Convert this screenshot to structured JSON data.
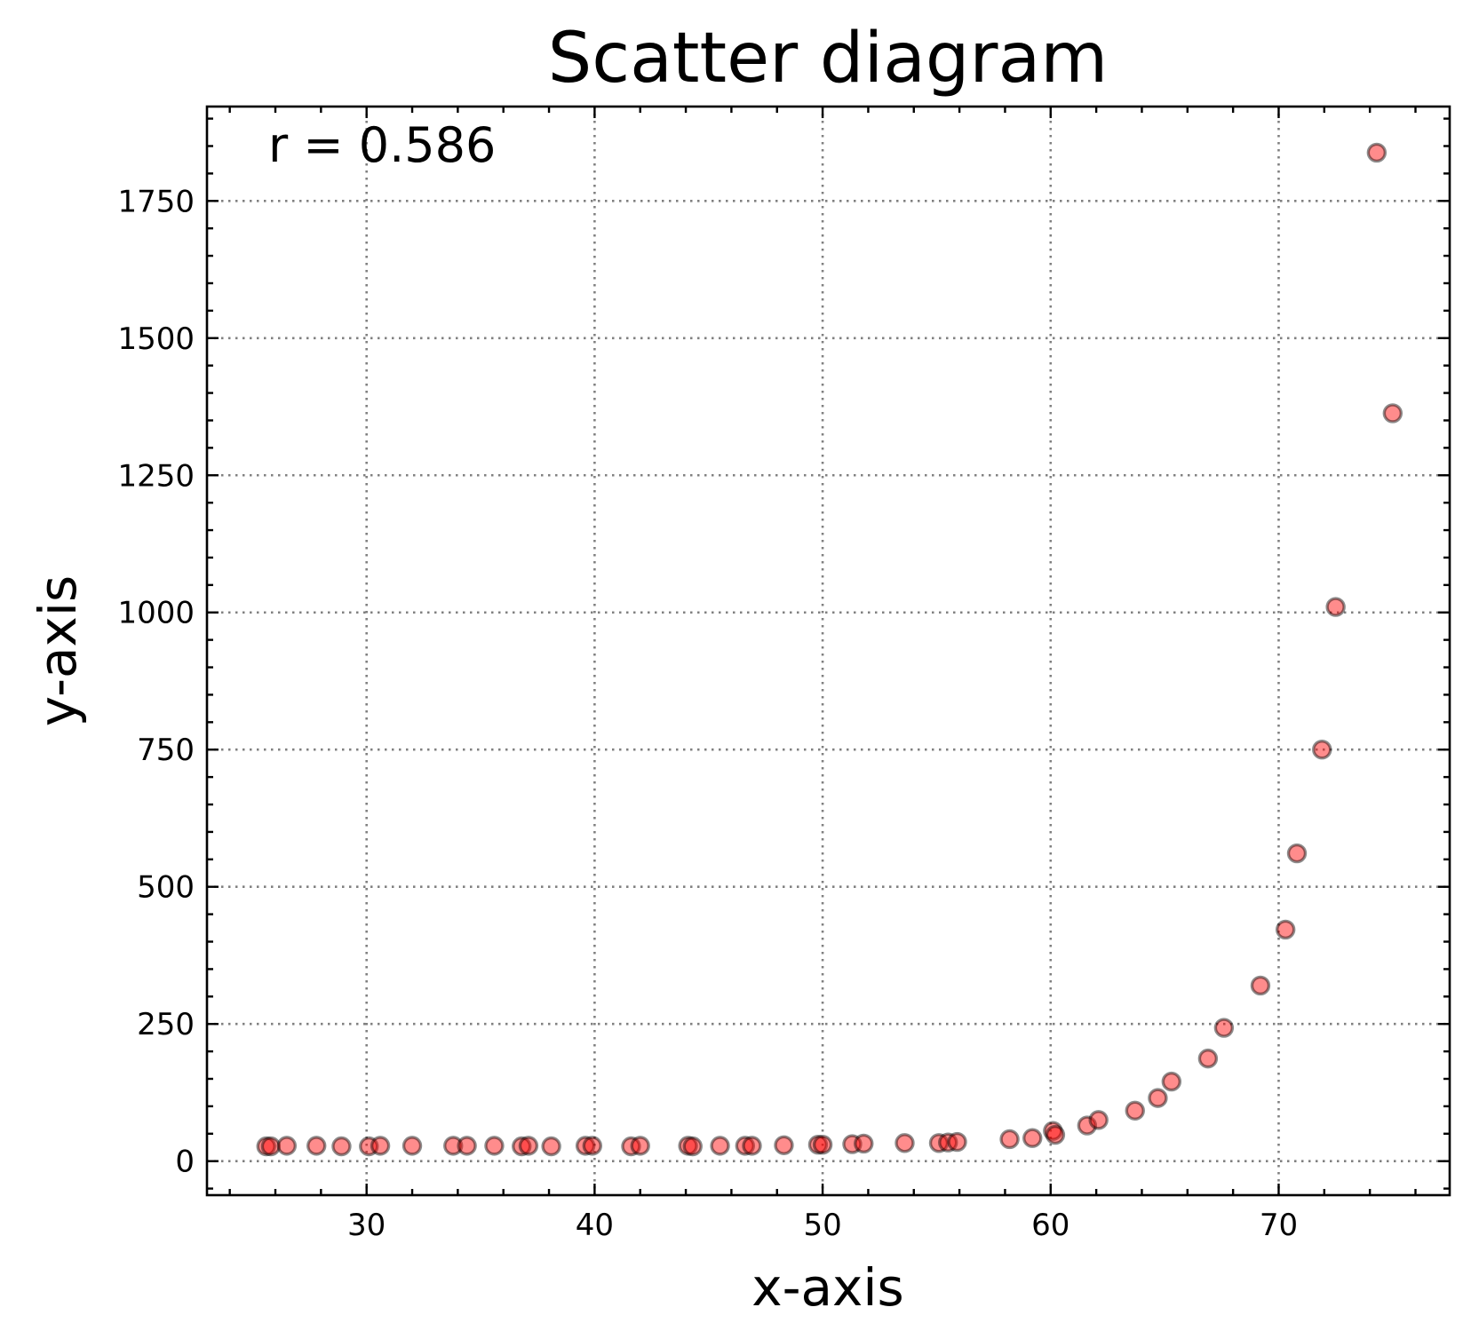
{
  "chart_data": {
    "type": "scatter",
    "title": "Scatter diagram",
    "xlabel": "x-axis",
    "ylabel": "y-axis",
    "annotation": "r = 0.586",
    "xlim": [
      23,
      77.5
    ],
    "ylim": [
      -62,
      1922
    ],
    "x_ticks": [
      30,
      40,
      50,
      60,
      70
    ],
    "y_ticks": [
      0,
      250,
      500,
      750,
      1000,
      1250,
      1500,
      1750
    ],
    "grid": true,
    "point_color": "#ff0000",
    "edge_color": "#000000",
    "series": [
      {
        "x": [
          25.6,
          25.8,
          26.5,
          27.8,
          28.9,
          30.1,
          30.6,
          32.0,
          33.8,
          34.4,
          35.6,
          36.8,
          37.1,
          38.1,
          39.6,
          39.9,
          41.6,
          42.0,
          44.1,
          44.3,
          45.5,
          46.6,
          46.9,
          48.3,
          49.8,
          50.0,
          51.3,
          51.8,
          53.6,
          55.1,
          55.5,
          55.9,
          58.2,
          59.2,
          60.1,
          60.2,
          61.6,
          62.1,
          63.7,
          64.7,
          65.3,
          66.9,
          67.6,
          69.2,
          70.3,
          70.8,
          71.9,
          72.5,
          74.3,
          75.0
        ],
        "y": [
          27,
          27,
          28,
          28,
          27,
          27,
          28,
          28,
          28,
          28,
          28,
          27,
          28,
          27,
          28,
          28,
          27,
          28,
          28,
          27,
          28,
          28,
          28,
          29,
          30,
          30,
          31,
          32,
          33,
          33,
          34,
          35,
          40,
          42,
          55,
          48,
          65,
          75,
          92,
          115,
          145,
          187,
          243,
          320,
          422,
          561,
          750,
          1010,
          1838,
          1363
        ]
      }
    ]
  }
}
